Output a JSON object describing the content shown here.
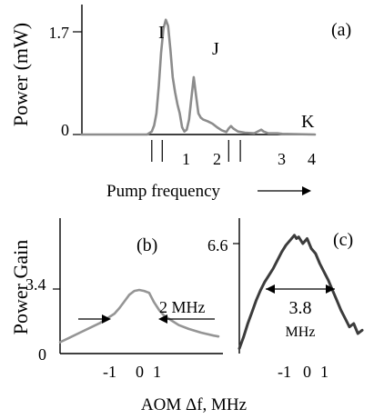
{
  "colors": {
    "trace_a": "#8c8c8c",
    "trace_b": "#959595",
    "trace_c": "#3c3c3c",
    "axis": "#000000"
  },
  "chart_data": [
    {
      "panel": "(a)",
      "type": "line",
      "xlabel": "Pump frequency",
      "ylabel": "Power (mW)",
      "yticks": [
        "0",
        "1.7"
      ],
      "ylim": [
        0,
        1.95
      ],
      "xlim": [
        0,
        100
      ],
      "grid": false,
      "peak_labels": [
        "I",
        "J",
        "K"
      ],
      "x_markers": [
        "1",
        "2",
        "3",
        "4"
      ],
      "marker_positions": [
        30,
        34.5,
        63,
        68
      ],
      "series": [
        {
          "values": [
            [
              0,
              0
            ],
            [
              28,
              0
            ],
            [
              30,
              0.05
            ],
            [
              31,
              0.15
            ],
            [
              32,
              0.35
            ],
            [
              33,
              0.8
            ],
            [
              34,
              1.35
            ],
            [
              35,
              1.75
            ],
            [
              36,
              1.9
            ],
            [
              37,
              1.8
            ],
            [
              38,
              1.4
            ],
            [
              39,
              0.95
            ],
            [
              40,
              0.7
            ],
            [
              41,
              0.5
            ],
            [
              42,
              0.35
            ],
            [
              43,
              0.12
            ],
            [
              44,
              0.05
            ],
            [
              45,
              0.08
            ],
            [
              46,
              0.25
            ],
            [
              47,
              0.6
            ],
            [
              48,
              0.95
            ],
            [
              49,
              0.65
            ],
            [
              50,
              0.35
            ],
            [
              51,
              0.28
            ],
            [
              52,
              0.25
            ],
            [
              54,
              0.22
            ],
            [
              56,
              0.18
            ],
            [
              58,
              0.12
            ],
            [
              60,
              0.07
            ],
            [
              62,
              0.04
            ],
            [
              63,
              0.1
            ],
            [
              64,
              0.14
            ],
            [
              65,
              0.1
            ],
            [
              67,
              0.05
            ],
            [
              70,
              0.03
            ],
            [
              74,
              0.02
            ],
            [
              76,
              0.06
            ],
            [
              77,
              0.08
            ],
            [
              78,
              0.05
            ],
            [
              80,
              0.02
            ],
            [
              84,
              0.02
            ],
            [
              86,
              0.01
            ],
            [
              100,
              0
            ]
          ]
        }
      ]
    },
    {
      "panel": "(b)",
      "type": "line",
      "xlabel": "AOM Δf, MHz",
      "ylabel": "Power Gain",
      "xticks": [
        "-1",
        "0",
        "1"
      ],
      "yticks": [
        "0",
        "3.4"
      ],
      "xlim": [
        -3.2,
        3.2
      ],
      "ylim": [
        0,
        6.2
      ],
      "grid": false,
      "width_annotation": "2 MHz",
      "width_markers": [
        -1.0,
        1.0
      ],
      "series": [
        {
          "values": [
            [
              -3.2,
              0.6
            ],
            [
              -2.8,
              0.85
            ],
            [
              -2.4,
              1.1
            ],
            [
              -2.0,
              1.35
            ],
            [
              -1.6,
              1.6
            ],
            [
              -1.3,
              1.85
            ],
            [
              -1.0,
              2.1
            ],
            [
              -0.8,
              2.4
            ],
            [
              -0.6,
              2.75
            ],
            [
              -0.4,
              3.1
            ],
            [
              -0.2,
              3.3
            ],
            [
              0.0,
              3.35
            ],
            [
              0.2,
              3.3
            ],
            [
              0.4,
              3.2
            ],
            [
              0.6,
              2.7
            ],
            [
              0.8,
              2.3
            ],
            [
              1.0,
              2.0
            ],
            [
              1.3,
              1.75
            ],
            [
              1.6,
              1.5
            ],
            [
              2.0,
              1.3
            ],
            [
              2.5,
              1.1
            ],
            [
              3.0,
              0.95
            ],
            [
              3.2,
              0.9
            ]
          ]
        }
      ]
    },
    {
      "panel": "(c)",
      "type": "line",
      "xlabel": "AOM Δf, MHz",
      "ylabel": "Power Gain",
      "xticks": [
        "-1",
        "0",
        "1"
      ],
      "yticks": [
        "6.6"
      ],
      "xlim": [
        -2.8,
        3.0
      ],
      "ylim": [
        0,
        7.6
      ],
      "grid": false,
      "width_annotation": [
        "3.8",
        "MHz"
      ],
      "width_markers": [
        -1.9,
        1.9
      ],
      "series": [
        {
          "values": [
            [
              -2.8,
              0.3
            ],
            [
              -2.6,
              1.0
            ],
            [
              -2.4,
              1.8
            ],
            [
              -2.2,
              2.5
            ],
            [
              -2.0,
              3.2
            ],
            [
              -1.8,
              3.8
            ],
            [
              -1.6,
              4.3
            ],
            [
              -1.4,
              4.7
            ],
            [
              -1.2,
              5.1
            ],
            [
              -1.0,
              5.6
            ],
            [
              -0.8,
              6.1
            ],
            [
              -0.6,
              6.5
            ],
            [
              -0.4,
              6.8
            ],
            [
              -0.2,
              7.1
            ],
            [
              -0.1,
              6.9
            ],
            [
              0.0,
              7.0
            ],
            [
              0.2,
              6.6
            ],
            [
              0.4,
              6.9
            ],
            [
              0.6,
              6.3
            ],
            [
              0.8,
              6.0
            ],
            [
              1.0,
              5.4
            ],
            [
              1.2,
              4.9
            ],
            [
              1.4,
              4.4
            ],
            [
              1.6,
              3.8
            ],
            [
              1.8,
              3.2
            ],
            [
              2.0,
              2.6
            ],
            [
              2.2,
              2.1
            ],
            [
              2.4,
              1.6
            ],
            [
              2.6,
              1.8
            ],
            [
              2.8,
              1.2
            ],
            [
              3.0,
              1.4
            ]
          ]
        }
      ]
    }
  ],
  "arrow_symbol": "⟶"
}
